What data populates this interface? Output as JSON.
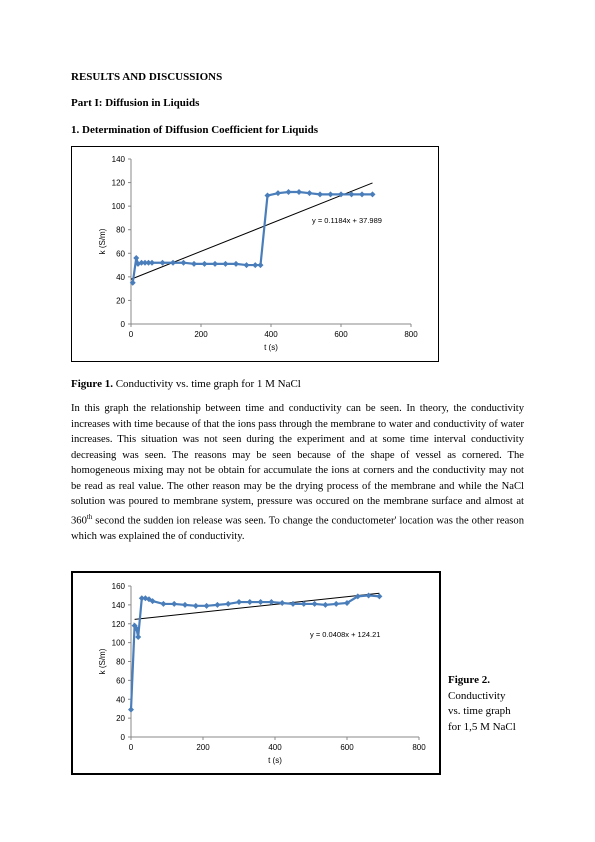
{
  "headings": {
    "results": "RESULTS AND DISCUSSIONS",
    "part1": "Part I: Diffusion in Liquids",
    "section1": "1. Determination of Diffusion Coefficient for Liquids"
  },
  "figure1": {
    "caption_bold": "Figure 1.",
    "caption_text": " Conductivity vs. time graph for 1 M NaCl"
  },
  "paragraph": {
    "text_before_sup": "In this graph the relationship between time and conductivity can be seen. In theory, the conductivity increases with time because of that the ions pass through the membrane to water and conductivity of water increases. This situation was not seen during the experiment and at some time interval conductivity decreasing was seen. The reasons may be seen because of the shape of vessel as cornered. The homogeneous mixing may not be obtain for accumulate the ions at corners and the conductivity may not be read as real value. The other reason may be the drying process of the membrane and while the NaCl solution was poured to membrane system, pressure was occured on the membrane surface and almost at 360",
    "sup": "th",
    "text_after_sup": " second the sudden ion release was seen. To change the conductometer' location was the other reason which was explained the of conductivity."
  },
  "figure2": {
    "caption_bold": "Figure 2.",
    "caption_lines": [
      "Conductivity",
      "vs. time graph",
      "for 1,5 M NaCl"
    ]
  },
  "chart_data": [
    {
      "type": "scatter",
      "xlabel": "t (s)",
      "ylabel": "k (S/m)",
      "xlim": [
        0,
        800
      ],
      "ylim": [
        0,
        140
      ],
      "x_ticks": [
        "0",
        "200",
        "400",
        "600",
        "800"
      ],
      "y_ticks": [
        "0",
        "20",
        "40",
        "60",
        "80",
        "100",
        "120",
        "140"
      ],
      "trendline_label": "y = 0.1184x + 37.989",
      "trendline": {
        "slope": 0.1184,
        "intercept": 37.989,
        "x_range": [
          0,
          690
        ]
      },
      "series": [
        {
          "color": "#4a7ebb",
          "x": [
            5,
            15,
            20,
            30,
            40,
            50,
            60,
            90,
            120,
            150,
            180,
            210,
            240,
            270,
            300,
            330,
            355,
            370,
            390,
            420,
            450,
            480,
            510,
            540,
            570,
            600,
            630,
            660,
            690
          ],
          "y": [
            35,
            56,
            51,
            52,
            52,
            52,
            52,
            52,
            52,
            52,
            51,
            51,
            51,
            51,
            51,
            50,
            50,
            50,
            109,
            111,
            112,
            112,
            111,
            110,
            110,
            110,
            110,
            110,
            110
          ]
        }
      ],
      "grid": false
    },
    {
      "type": "scatter",
      "xlabel": "t (s)",
      "ylabel": "k (S/m)",
      "xlim": [
        0,
        800
      ],
      "ylim": [
        0,
        160
      ],
      "x_ticks": [
        "0",
        "200",
        "400",
        "600",
        "800"
      ],
      "y_ticks": [
        "0",
        "20",
        "40",
        "60",
        "80",
        "100",
        "120",
        "140",
        "160"
      ],
      "trendline_label": "y = 0.0408x + 124.21",
      "trendline": {
        "slope": 0.0408,
        "intercept": 124.21,
        "x_range": [
          10,
          690
        ]
      },
      "series": [
        {
          "color": "#4a7ebb",
          "x": [
            0,
            10,
            15,
            20,
            30,
            40,
            50,
            60,
            90,
            120,
            150,
            180,
            210,
            240,
            270,
            300,
            330,
            360,
            390,
            420,
            450,
            480,
            510,
            540,
            570,
            600,
            630,
            660,
            690
          ],
          "y": [
            29,
            118,
            115,
            106,
            147,
            147,
            146,
            144,
            141,
            141,
            140,
            139,
            139,
            140,
            141,
            143,
            143,
            143,
            143,
            142,
            141,
            141,
            141,
            140,
            141,
            142,
            149,
            150,
            149
          ]
        }
      ],
      "grid": false
    }
  ]
}
